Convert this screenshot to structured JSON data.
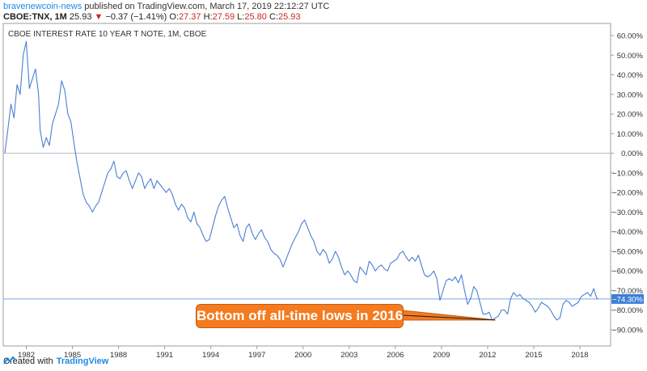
{
  "header": {
    "author": "bravenewcoin-news",
    "published_text": "published on TradingView.com, March 17, 2019 22:12:27 UTC",
    "symbol": "CBOE:TNX, 1M",
    "last": "25.93",
    "change_arrow": "▼",
    "change": "−0.37 (−1.41%)",
    "o_label": "O:",
    "o_value": "27.37",
    "h_label": "H:",
    "h_value": "27.59",
    "l_label": "L:",
    "l_value": "25.80",
    "c_label": "C:",
    "c_value": "25.93"
  },
  "footer": {
    "created_with": "Created with",
    "brand": "TradingView",
    "logo_icon": "tradingview-logo-icon"
  },
  "annotation": {
    "callout_text": "Bottom off all-time lows in 2016"
  },
  "colors": {
    "line": "#4a7fd4",
    "axis_text": "#333333",
    "callout_bg": "#f47b20",
    "last_badge": "#3d7fd6",
    "negative": "#c62828",
    "brand": "#1e88e5"
  },
  "chart_data": {
    "type": "line",
    "title": "CBOE INTEREST RATE 10 YEAR T NOTE, 1M, CBOE",
    "xlabel": "",
    "ylabel": "",
    "y_unit": "%",
    "xlim": [
      1980.5,
      2020.0
    ],
    "ylim": [
      -95,
      65
    ],
    "y_ticks": [
      60,
      50,
      40,
      30,
      20,
      10,
      0,
      -10,
      -20,
      -30,
      -40,
      -50,
      -60,
      -70,
      -80,
      -90
    ],
    "y_tick_labels": [
      "60.00%",
      "50.00%",
      "40.00%",
      "30.00%",
      "20.00%",
      "10.00%",
      "0.00%",
      "−10.00%",
      "−20.00%",
      "−30.00%",
      "−40.00%",
      "−50.00%",
      "−60.00%",
      "−70.00%",
      "−80.00%",
      "−90.00%"
    ],
    "x_ticks": [
      1982,
      1985,
      1988,
      1991,
      1994,
      1997,
      2000,
      2003,
      2006,
      2009,
      2012,
      2015,
      2018
    ],
    "x_tick_labels": [
      "1982",
      "1985",
      "1988",
      "1991",
      "1994",
      "1997",
      "2000",
      "2003",
      "2006",
      "2009",
      "2012",
      "2015",
      "2018"
    ],
    "last_value_label": "−74.30%",
    "last_value": -74.3,
    "reference_lines": [
      0,
      -74.3
    ],
    "arrow_target": [
      2012.5,
      -85
    ],
    "series": [
      {
        "name": "CBOE:TNX % change",
        "points": [
          [
            1980.6,
            0
          ],
          [
            1980.8,
            12
          ],
          [
            1981.0,
            25
          ],
          [
            1981.2,
            18
          ],
          [
            1981.4,
            35
          ],
          [
            1981.6,
            30
          ],
          [
            1981.8,
            50
          ],
          [
            1982.0,
            57
          ],
          [
            1982.2,
            33
          ],
          [
            1982.4,
            38
          ],
          [
            1982.6,
            43
          ],
          [
            1982.8,
            30
          ],
          [
            1982.9,
            12
          ],
          [
            1983.1,
            3
          ],
          [
            1983.3,
            8
          ],
          [
            1983.5,
            4
          ],
          [
            1983.7,
            15
          ],
          [
            1983.9,
            20
          ],
          [
            1984.1,
            25
          ],
          [
            1984.3,
            37
          ],
          [
            1984.5,
            32
          ],
          [
            1984.7,
            20
          ],
          [
            1984.9,
            16
          ],
          [
            1985.1,
            5
          ],
          [
            1985.3,
            -5
          ],
          [
            1985.5,
            -13
          ],
          [
            1985.7,
            -21
          ],
          [
            1985.9,
            -25
          ],
          [
            1986.1,
            -27
          ],
          [
            1986.3,
            -30
          ],
          [
            1986.5,
            -27
          ],
          [
            1986.7,
            -25
          ],
          [
            1986.9,
            -20
          ],
          [
            1987.1,
            -15
          ],
          [
            1987.3,
            -10
          ],
          [
            1987.5,
            -8
          ],
          [
            1987.7,
            -4
          ],
          [
            1987.9,
            -12
          ],
          [
            1988.1,
            -13
          ],
          [
            1988.3,
            -10
          ],
          [
            1988.5,
            -9
          ],
          [
            1988.7,
            -14
          ],
          [
            1988.9,
            -18
          ],
          [
            1989.1,
            -14
          ],
          [
            1989.3,
            -10
          ],
          [
            1989.5,
            -12
          ],
          [
            1989.7,
            -18
          ],
          [
            1989.9,
            -15
          ],
          [
            1990.1,
            -13
          ],
          [
            1990.3,
            -18
          ],
          [
            1990.5,
            -14
          ],
          [
            1990.7,
            -16
          ],
          [
            1990.9,
            -18
          ],
          [
            1991.1,
            -20
          ],
          [
            1991.3,
            -18
          ],
          [
            1991.5,
            -21
          ],
          [
            1991.7,
            -26
          ],
          [
            1991.9,
            -29
          ],
          [
            1992.1,
            -26
          ],
          [
            1992.3,
            -28
          ],
          [
            1992.5,
            -33
          ],
          [
            1992.7,
            -35
          ],
          [
            1992.9,
            -30
          ],
          [
            1993.1,
            -36
          ],
          [
            1993.3,
            -38
          ],
          [
            1993.5,
            -42
          ],
          [
            1993.7,
            -45
          ],
          [
            1993.9,
            -44
          ],
          [
            1994.1,
            -38
          ],
          [
            1994.3,
            -32
          ],
          [
            1994.5,
            -27
          ],
          [
            1994.7,
            -24
          ],
          [
            1994.9,
            -22
          ],
          [
            1995.1,
            -28
          ],
          [
            1995.3,
            -33
          ],
          [
            1995.5,
            -38
          ],
          [
            1995.7,
            -36
          ],
          [
            1995.9,
            -42
          ],
          [
            1996.1,
            -45
          ],
          [
            1996.3,
            -38
          ],
          [
            1996.5,
            -36
          ],
          [
            1996.7,
            -41
          ],
          [
            1996.9,
            -44
          ],
          [
            1997.1,
            -41
          ],
          [
            1997.3,
            -39
          ],
          [
            1997.5,
            -43
          ],
          [
            1997.7,
            -45
          ],
          [
            1997.9,
            -49
          ],
          [
            1998.1,
            -51
          ],
          [
            1998.3,
            -52
          ],
          [
            1998.5,
            -54
          ],
          [
            1998.7,
            -58
          ],
          [
            1998.9,
            -54
          ],
          [
            1999.1,
            -50
          ],
          [
            1999.3,
            -46
          ],
          [
            1999.5,
            -43
          ],
          [
            1999.7,
            -40
          ],
          [
            1999.9,
            -36
          ],
          [
            2000.1,
            -34
          ],
          [
            2000.3,
            -38
          ],
          [
            2000.5,
            -42
          ],
          [
            2000.7,
            -45
          ],
          [
            2000.9,
            -50
          ],
          [
            2001.1,
            -52
          ],
          [
            2001.3,
            -49
          ],
          [
            2001.5,
            -51
          ],
          [
            2001.7,
            -56
          ],
          [
            2001.9,
            -54
          ],
          [
            2002.1,
            -50
          ],
          [
            2002.3,
            -53
          ],
          [
            2002.5,
            -58
          ],
          [
            2002.7,
            -62
          ],
          [
            2002.9,
            -60
          ],
          [
            2003.1,
            -62
          ],
          [
            2003.3,
            -65
          ],
          [
            2003.5,
            -66
          ],
          [
            2003.7,
            -58
          ],
          [
            2003.9,
            -60
          ],
          [
            2004.1,
            -62
          ],
          [
            2004.3,
            -55
          ],
          [
            2004.5,
            -57
          ],
          [
            2004.7,
            -60
          ],
          [
            2004.9,
            -58
          ],
          [
            2005.1,
            -57
          ],
          [
            2005.3,
            -59
          ],
          [
            2005.5,
            -60
          ],
          [
            2005.7,
            -56
          ],
          [
            2005.9,
            -55
          ],
          [
            2006.1,
            -54
          ],
          [
            2006.3,
            -51
          ],
          [
            2006.5,
            -50
          ],
          [
            2006.7,
            -53
          ],
          [
            2006.9,
            -55
          ],
          [
            2007.1,
            -53
          ],
          [
            2007.3,
            -55
          ],
          [
            2007.5,
            -52
          ],
          [
            2007.7,
            -57
          ],
          [
            2007.9,
            -62
          ],
          [
            2008.1,
            -63
          ],
          [
            2008.3,
            -62
          ],
          [
            2008.5,
            -60
          ],
          [
            2008.7,
            -64
          ],
          [
            2008.9,
            -75
          ],
          [
            2009.1,
            -70
          ],
          [
            2009.3,
            -65
          ],
          [
            2009.5,
            -64
          ],
          [
            2009.7,
            -65
          ],
          [
            2009.9,
            -63
          ],
          [
            2010.1,
            -66
          ],
          [
            2010.3,
            -62
          ],
          [
            2010.5,
            -70
          ],
          [
            2010.7,
            -77
          ],
          [
            2010.9,
            -74
          ],
          [
            2011.1,
            -68
          ],
          [
            2011.3,
            -70
          ],
          [
            2011.5,
            -76
          ],
          [
            2011.7,
            -82
          ],
          [
            2011.9,
            -82
          ],
          [
            2012.1,
            -81
          ],
          [
            2012.3,
            -85
          ],
          [
            2012.5,
            -84
          ],
          [
            2012.7,
            -83
          ],
          [
            2012.9,
            -80
          ],
          [
            2013.1,
            -80
          ],
          [
            2013.3,
            -82
          ],
          [
            2013.5,
            -74
          ],
          [
            2013.7,
            -71
          ],
          [
            2013.9,
            -73
          ],
          [
            2014.1,
            -72
          ],
          [
            2014.3,
            -74
          ],
          [
            2014.5,
            -75
          ],
          [
            2014.7,
            -76
          ],
          [
            2014.9,
            -78
          ],
          [
            2015.1,
            -81
          ],
          [
            2015.3,
            -79
          ],
          [
            2015.5,
            -76
          ],
          [
            2015.7,
            -77
          ],
          [
            2015.9,
            -78
          ],
          [
            2016.1,
            -80
          ],
          [
            2016.3,
            -83
          ],
          [
            2016.5,
            -85
          ],
          [
            2016.7,
            -84
          ],
          [
            2016.9,
            -77
          ],
          [
            2017.1,
            -75
          ],
          [
            2017.3,
            -76
          ],
          [
            2017.5,
            -78
          ],
          [
            2017.7,
            -77
          ],
          [
            2017.9,
            -76
          ],
          [
            2018.1,
            -73
          ],
          [
            2018.3,
            -72
          ],
          [
            2018.5,
            -71
          ],
          [
            2018.7,
            -73
          ],
          [
            2018.9,
            -69
          ],
          [
            2019.1,
            -74
          ],
          [
            2019.2,
            -74.3
          ]
        ]
      }
    ]
  }
}
